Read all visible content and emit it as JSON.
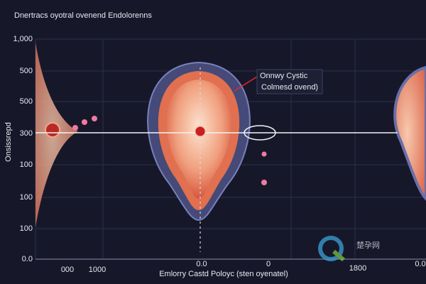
{
  "header": {
    "title": "Dnertracs oyotral ovenend Endolorenns"
  },
  "y_axis": {
    "title": "Onsissrepd",
    "labels": [
      "1,000",
      "500",
      "500",
      "300",
      "100",
      "100",
      "100",
      "0.0"
    ]
  },
  "x_axis": {
    "title": "Emlorry Castd Poloyc (sten oyenatel)",
    "labels": [
      "000",
      "1000",
      "0.0",
      "0",
      "1800",
      "0.0"
    ]
  },
  "annotation": {
    "lines": [
      "Onnwy Cystic",
      "Colmesd ovend)"
    ]
  },
  "watermark": "楚孕网"
}
